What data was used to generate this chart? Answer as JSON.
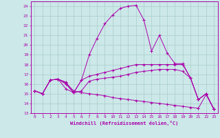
{
  "xlabel": "Windchill (Refroidissement éolien,°C)",
  "background_color": "#cce8e8",
  "grid_color": "#aacccc",
  "line_color": "#aa00aa",
  "xlim": [
    -0.5,
    23.5
  ],
  "ylim": [
    13,
    24.5
  ],
  "xticks": [
    0,
    1,
    2,
    3,
    4,
    5,
    6,
    7,
    8,
    9,
    10,
    11,
    12,
    13,
    14,
    15,
    16,
    17,
    18,
    19,
    20,
    21,
    22,
    23
  ],
  "yticks": [
    13,
    14,
    15,
    16,
    17,
    18,
    19,
    20,
    21,
    22,
    23,
    24
  ],
  "line1_x": [
    0,
    1,
    2,
    3,
    4,
    5,
    6,
    7,
    8,
    9,
    10,
    11,
    12,
    13,
    14,
    15,
    16,
    17,
    18,
    19,
    20,
    21,
    22,
    23
  ],
  "line1_y": [
    15.3,
    15.0,
    16.4,
    16.5,
    15.5,
    15.1,
    16.4,
    19.0,
    20.7,
    22.2,
    23.1,
    23.8,
    24.0,
    24.1,
    22.6,
    19.4,
    21.0,
    19.2,
    18.1,
    18.1,
    16.6,
    14.4,
    15.0,
    13.4
  ],
  "line2_x": [
    0,
    1,
    2,
    3,
    4,
    5,
    6,
    7,
    8,
    9,
    10,
    11,
    12,
    13,
    14,
    15,
    16,
    17,
    18,
    19,
    20,
    21,
    22,
    23
  ],
  "line2_y": [
    15.3,
    15.0,
    16.4,
    16.5,
    16.0,
    15.1,
    16.4,
    16.8,
    17.0,
    17.2,
    17.4,
    17.6,
    17.8,
    18.0,
    18.0,
    18.0,
    18.0,
    18.0,
    18.0,
    18.0,
    16.6,
    14.4,
    15.0,
    13.4
  ],
  "line3_x": [
    0,
    1,
    2,
    3,
    4,
    5,
    6,
    7,
    8,
    9,
    10,
    11,
    12,
    13,
    14,
    15,
    16,
    17,
    18,
    19,
    20,
    21,
    22,
    23
  ],
  "line3_y": [
    15.3,
    15.0,
    16.4,
    16.5,
    16.2,
    15.1,
    15.3,
    16.3,
    16.5,
    16.6,
    16.7,
    16.8,
    17.0,
    17.2,
    17.3,
    17.4,
    17.5,
    17.5,
    17.5,
    17.3,
    16.6,
    14.4,
    15.0,
    13.4
  ],
  "line4_x": [
    0,
    1,
    2,
    3,
    4,
    5,
    6,
    7,
    8,
    9,
    10,
    11,
    12,
    13,
    14,
    15,
    16,
    17,
    18,
    19,
    20,
    21,
    22,
    23
  ],
  "line4_y": [
    15.3,
    15.0,
    16.4,
    16.5,
    16.1,
    15.3,
    15.1,
    15.0,
    14.9,
    14.8,
    14.6,
    14.5,
    14.4,
    14.3,
    14.2,
    14.1,
    14.0,
    13.9,
    13.8,
    13.7,
    13.6,
    13.5,
    14.9,
    13.4
  ]
}
